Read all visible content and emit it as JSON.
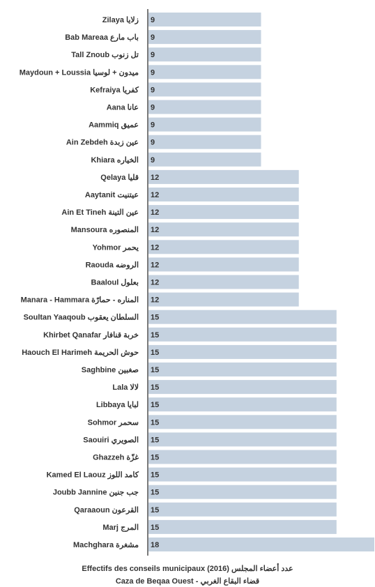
{
  "chart_data": {
    "type": "bar",
    "orientation": "horizontal",
    "categories": [
      "Zilaya زلايا",
      "Bab Mareaa باب مارع",
      "Tall Znoub تل زنوب",
      "Maydoun + Loussia ميدون + لوسيا",
      "Kefraiya كفريا",
      "Aana عانا",
      "Aammiq عميق",
      "Ain Zebdeh عين زبدة",
      "Khiara الخياره",
      "Qelaya قليا",
      "Aaytanit عيتنيت",
      "Ain Et Tineh عين التينة",
      "Mansoura المنصوره",
      "Yohmor يحمر",
      "Raouda الروضه",
      "Baaloul بعلول",
      "Manara - Hammara المناره - حمارّة",
      "Soultan Yaaqoub السلطان يعقوب",
      "Khirbet Qanafar خربة قنافار",
      "Haouch El Harimeh حوش الحريمة",
      "Saghbine صغبين",
      "Lala لالا",
      "Libbaya لبايا",
      "Sohmor سحمر",
      "Saouiri الصويري",
      "Ghazzeh غزّة",
      "Kamed El Laouz كامد اللوز",
      "Joubb Jannine جب جنين",
      "Qaraaoun القرعون",
      "Marj المرج",
      "Machghara مشغرة"
    ],
    "values": [
      9,
      9,
      9,
      9,
      9,
      9,
      9,
      9,
      9,
      12,
      12,
      12,
      12,
      12,
      12,
      12,
      12,
      15,
      15,
      15,
      15,
      15,
      15,
      15,
      15,
      15,
      15,
      15,
      15,
      15,
      18
    ],
    "value_labels": [
      "9",
      "9",
      "9",
      "9",
      "9",
      "9",
      "9",
      "9",
      "9",
      "12",
      "12",
      "12",
      "12",
      "12",
      "12",
      "12",
      "12",
      "15",
      "15",
      "15",
      "15",
      "15",
      "15",
      "15",
      "15",
      "15",
      "15",
      "15",
      "15",
      "15",
      "18"
    ],
    "xlim": [
      0,
      18
    ],
    "grid": false,
    "legend": "none",
    "bar_color": "#c5d2e0",
    "axis_color": "#333333",
    "caption_line1": "Effectifs des conseils municipaux (2016) عدد أعضاء المجلس",
    "caption_line2": "Caza de Beqaa Ouest - قضاء البقاع الغربي"
  }
}
